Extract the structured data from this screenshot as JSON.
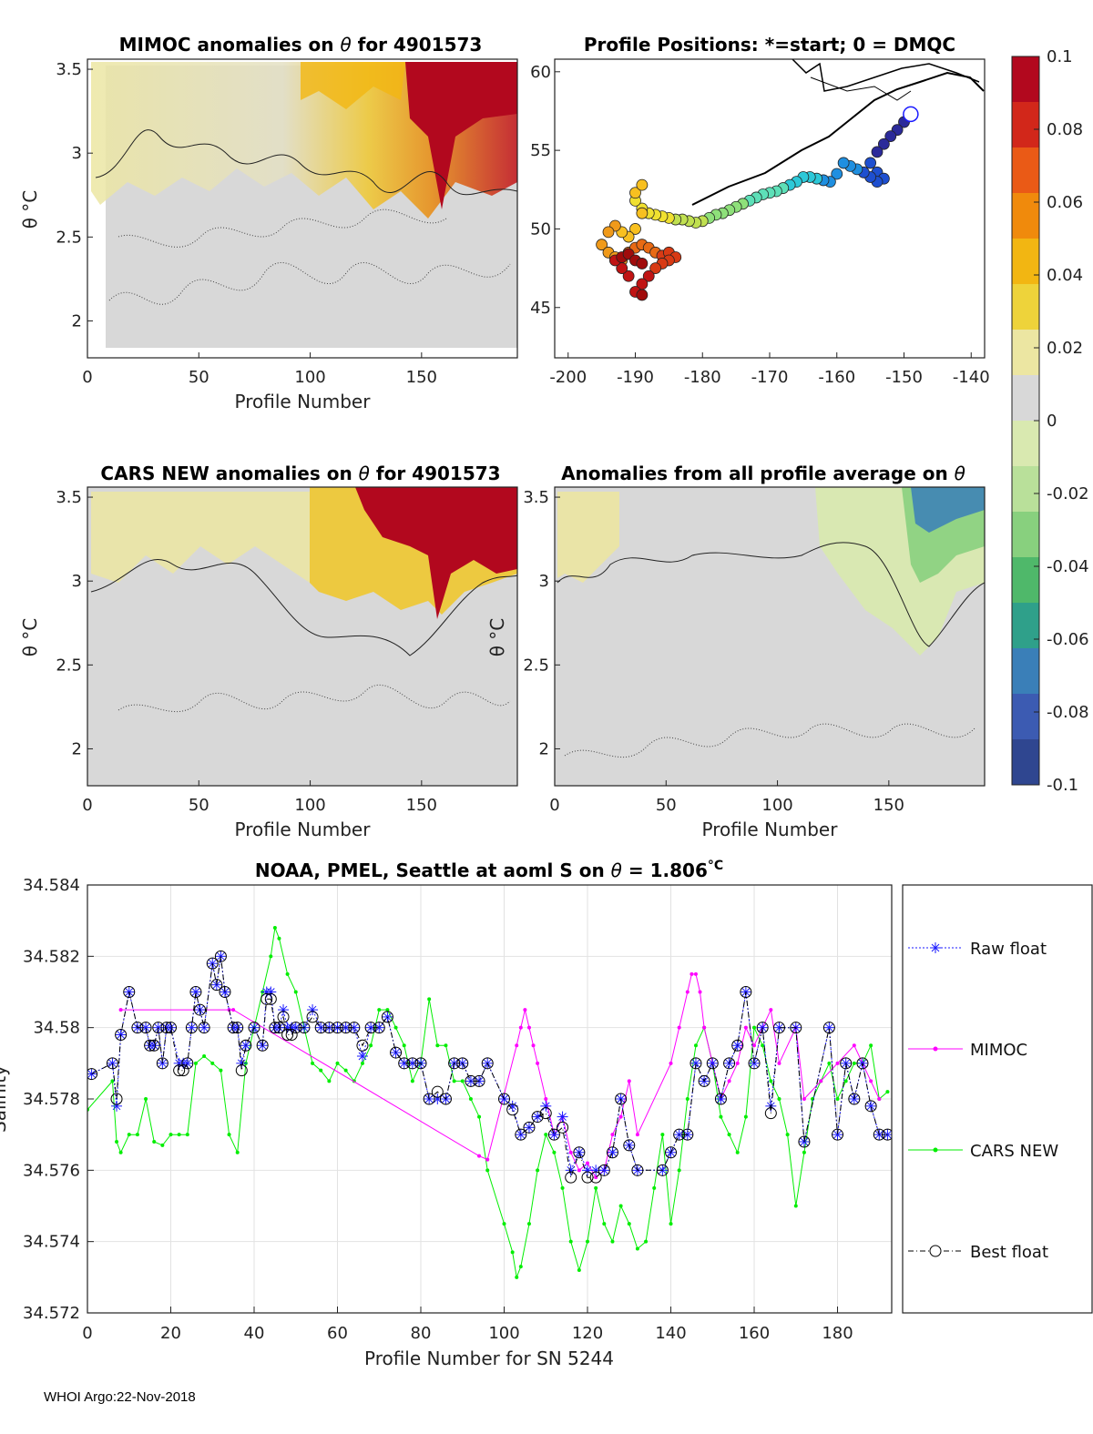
{
  "panels": {
    "mimoc": {
      "title_prefix": "MIMOC anomalies on",
      "theta_symbol": "θ",
      "title_suffix": "for 4901573",
      "xlabel": "Profile Number",
      "ylabel": "θ °C",
      "xticks": [
        "0",
        "50",
        "100",
        "150"
      ],
      "yticks": [
        "3.5",
        "3",
        "2.5",
        "2"
      ]
    },
    "positions": {
      "title": "Profile Positions: *=start; 0 = DMQC",
      "xticks": [
        "-200",
        "-190",
        "-180",
        "-170",
        "-160",
        "-150",
        "-140"
      ],
      "yticks": [
        "60",
        "55",
        "50",
        "45"
      ]
    },
    "cars": {
      "title_prefix": "CARS NEW anomalies on",
      "theta_symbol": "θ",
      "title_suffix": "for 4901573",
      "xlabel": "Profile Number",
      "ylabel": "θ °C",
      "xticks": [
        "0",
        "50",
        "100",
        "150"
      ],
      "yticks": [
        "3.5",
        "3",
        "2.5",
        "2"
      ]
    },
    "average": {
      "title_prefix": "Anomalies from all profile average on",
      "theta_symbol": "θ",
      "xlabel": "Profile Number",
      "ylabel": "θ °C",
      "xticks": [
        "0",
        "50",
        "100",
        "150"
      ],
      "yticks": [
        "3.5",
        "3",
        "2.5",
        "2"
      ]
    }
  },
  "colorbar": {
    "ticks": [
      "0.1",
      "0.08",
      "0.06",
      "0.04",
      "0.02",
      "0",
      "-0.02",
      "-0.04",
      "-0.06",
      "-0.08",
      "-0.1"
    ],
    "colors": [
      "#b2081e",
      "#d2271a",
      "#ea5a16",
      "#f08a0c",
      "#f2b612",
      "#eed33a",
      "#ece6a2",
      "#d8d8d8",
      "#d9e9b0",
      "#b9e09a",
      "#88d07e",
      "#4fb86a",
      "#2fa08a",
      "#3a7fb8",
      "#3c5bb2",
      "#2f4690"
    ]
  },
  "chart_data": {
    "type": "line",
    "title_prefix": "NOAA, PMEL, Seattle at aoml S on",
    "theta_symbol": "θ",
    "title_value": "= 1.806",
    "title_unit": "°C",
    "xlabel": "Profile Number for SN 5244",
    "ylabel": "Salinity",
    "xlim": [
      0,
      193
    ],
    "ylim": [
      34.572,
      34.584
    ],
    "xticks": [
      "0",
      "20",
      "40",
      "60",
      "80",
      "100",
      "120",
      "140",
      "160",
      "180"
    ],
    "yticks": [
      "34.584",
      "34.582",
      "34.58",
      "34.578",
      "34.576",
      "34.574",
      "34.572"
    ],
    "grid": true,
    "legend_position": "outside-right",
    "series": [
      {
        "name": "Raw float",
        "color": "#1a1aff",
        "x": [
          1,
          6,
          7,
          8,
          10,
          12,
          14,
          15,
          16,
          17,
          18,
          19,
          20,
          22,
          23,
          24,
          25,
          26,
          27,
          28,
          30,
          31,
          32,
          33,
          35,
          36,
          37,
          38,
          40,
          42,
          43,
          44,
          45,
          46,
          47,
          48,
          49,
          50,
          52,
          54,
          56,
          58,
          60,
          62,
          64,
          66,
          68,
          70,
          72,
          74,
          76,
          78,
          80,
          82,
          84,
          86,
          88,
          90,
          92,
          94,
          96,
          100,
          102,
          104,
          106,
          108,
          110,
          112,
          114,
          116,
          118,
          120,
          122,
          124,
          126,
          128,
          130,
          132,
          138,
          140,
          142,
          144,
          146,
          148,
          150,
          152,
          154,
          156,
          158,
          160,
          162,
          164,
          166,
          170,
          172,
          178,
          180,
          182,
          184,
          186,
          188,
          190,
          192
        ],
        "values": [
          34.5787,
          34.579,
          34.5778,
          34.5798,
          34.581,
          34.58,
          34.58,
          34.5795,
          34.5795,
          34.58,
          34.579,
          34.58,
          34.58,
          34.579,
          34.579,
          34.579,
          34.58,
          34.581,
          34.5805,
          34.58,
          34.5818,
          34.5812,
          34.582,
          34.581,
          34.58,
          34.58,
          34.579,
          34.5795,
          34.58,
          34.5795,
          34.581,
          34.581,
          34.58,
          34.58,
          34.5805,
          34.58,
          34.58,
          34.58,
          34.58,
          34.5805,
          34.58,
          34.58,
          34.58,
          34.58,
          34.58,
          34.5792,
          34.58,
          34.58,
          34.5803,
          34.5793,
          34.579,
          34.579,
          34.579,
          34.578,
          34.578,
          34.578,
          34.579,
          34.579,
          34.5785,
          34.5785,
          34.579,
          34.578,
          34.5778,
          34.577,
          34.5772,
          34.5775,
          34.5778,
          34.577,
          34.5775,
          34.576,
          34.5765,
          34.576,
          34.576,
          34.576,
          34.5765,
          34.578,
          34.5767,
          34.576,
          34.576,
          34.5765,
          34.577,
          34.577,
          34.579,
          34.5785,
          34.579,
          34.578,
          34.579,
          34.5795,
          34.581,
          34.579,
          34.58,
          34.5778,
          34.58,
          34.58,
          34.5768,
          34.58,
          34.577,
          34.579,
          34.578,
          34.579,
          34.5778,
          34.577,
          34.577
        ]
      },
      {
        "name": "MIMOC",
        "color": "#ff00ff",
        "x": [
          8,
          34,
          35,
          94,
          96,
          103,
          104,
          105,
          106,
          107,
          108,
          110,
          112,
          114,
          116,
          118,
          120,
          122,
          124,
          126,
          128,
          130,
          132,
          140,
          142,
          144,
          145,
          146,
          147,
          148,
          150,
          152,
          154,
          156,
          158,
          160,
          162,
          164,
          166,
          170,
          172,
          176,
          180,
          184,
          186,
          188,
          190
        ],
        "values": [
          34.5805,
          34.5805,
          34.5805,
          34.5764,
          34.5763,
          34.5795,
          34.58,
          34.5805,
          34.58,
          34.5795,
          34.579,
          34.578,
          34.577,
          34.5775,
          34.5765,
          34.576,
          34.5762,
          34.5758,
          34.576,
          34.577,
          34.5775,
          34.5785,
          34.577,
          34.579,
          34.58,
          34.581,
          34.5815,
          34.5815,
          34.581,
          34.58,
          34.579,
          34.578,
          34.5785,
          34.579,
          34.58,
          34.5795,
          34.58,
          34.5805,
          34.579,
          34.58,
          34.578,
          34.5785,
          34.579,
          34.5795,
          34.579,
          34.5785,
          34.578
        ]
      },
      {
        "name": "CARS NEW",
        "color": "#00ee00",
        "x": [
          0,
          6,
          7,
          8,
          10,
          12,
          14,
          16,
          18,
          20,
          22,
          24,
          26,
          28,
          30,
          32,
          34,
          36,
          38,
          40,
          42,
          44,
          45,
          46,
          48,
          50,
          52,
          54,
          56,
          58,
          60,
          62,
          64,
          66,
          68,
          70,
          72,
          74,
          76,
          78,
          80,
          82,
          84,
          86,
          88,
          90,
          92,
          94,
          96,
          100,
          102,
          103,
          104,
          106,
          108,
          110,
          112,
          114,
          116,
          118,
          120,
          122,
          124,
          126,
          128,
          130,
          132,
          134,
          136,
          138,
          140,
          142,
          144,
          146,
          148,
          150,
          152,
          154,
          156,
          158,
          160,
          162,
          164,
          166,
          168,
          170,
          172,
          174,
          176,
          178,
          180,
          182,
          184,
          186,
          188,
          190,
          192
        ],
        "values": [
          34.5777,
          34.5785,
          34.5768,
          34.5765,
          34.577,
          34.577,
          34.578,
          34.5768,
          34.5767,
          34.577,
          34.577,
          34.577,
          34.579,
          34.5792,
          34.579,
          34.5788,
          34.577,
          34.5765,
          34.579,
          34.58,
          34.581,
          34.582,
          34.5828,
          34.5825,
          34.5815,
          34.581,
          34.58,
          34.579,
          34.5788,
          34.5785,
          34.579,
          34.5788,
          34.5785,
          34.579,
          34.5795,
          34.5805,
          34.5805,
          34.58,
          34.5795,
          34.5785,
          34.579,
          34.5808,
          34.5795,
          34.5795,
          34.5785,
          34.5785,
          34.578,
          34.5775,
          34.576,
          34.5745,
          34.5737,
          34.573,
          34.5733,
          34.5745,
          34.576,
          34.577,
          34.5765,
          34.5755,
          34.574,
          34.5732,
          34.574,
          34.5755,
          34.5745,
          34.574,
          34.575,
          34.5745,
          34.5738,
          34.574,
          34.5755,
          34.577,
          34.5745,
          34.576,
          34.578,
          34.5795,
          34.58,
          34.579,
          34.5775,
          34.577,
          34.5765,
          34.5775,
          34.58,
          34.5795,
          34.5785,
          34.578,
          34.577,
          34.575,
          34.5765,
          34.578,
          34.5785,
          34.579,
          34.578,
          34.5785,
          34.579,
          34.579,
          34.5795,
          34.578,
          34.5782
        ]
      },
      {
        "name": "Best float",
        "color": "#000000",
        "x": [
          1,
          6,
          7,
          8,
          10,
          12,
          14,
          15,
          16,
          17,
          18,
          19,
          20,
          22,
          23,
          24,
          25,
          26,
          27,
          28,
          30,
          31,
          32,
          33,
          35,
          36,
          37,
          38,
          40,
          42,
          43,
          44,
          45,
          46,
          47,
          48,
          49,
          50,
          52,
          54,
          56,
          58,
          60,
          62,
          64,
          66,
          68,
          70,
          72,
          74,
          76,
          78,
          80,
          82,
          84,
          86,
          88,
          90,
          92,
          94,
          96,
          100,
          102,
          104,
          106,
          108,
          110,
          112,
          114,
          116,
          118,
          120,
          122,
          124,
          126,
          128,
          130,
          132,
          138,
          140,
          142,
          144,
          146,
          148,
          150,
          152,
          154,
          156,
          158,
          160,
          162,
          164,
          166,
          170,
          172,
          178,
          180,
          182,
          184,
          186,
          188,
          190,
          192
        ],
        "values": [
          34.5787,
          34.579,
          34.578,
          34.5798,
          34.581,
          34.58,
          34.58,
          34.5795,
          34.5795,
          34.58,
          34.579,
          34.58,
          34.58,
          34.5788,
          34.5788,
          34.579,
          34.58,
          34.581,
          34.5805,
          34.58,
          34.5818,
          34.5812,
          34.582,
          34.581,
          34.58,
          34.58,
          34.5788,
          34.5795,
          34.58,
          34.5795,
          34.5808,
          34.5808,
          34.58,
          34.58,
          34.5803,
          34.5798,
          34.5798,
          34.58,
          34.58,
          34.5803,
          34.58,
          34.58,
          34.58,
          34.58,
          34.58,
          34.5795,
          34.58,
          34.58,
          34.5803,
          34.5793,
          34.579,
          34.579,
          34.579,
          34.578,
          34.5782,
          34.578,
          34.579,
          34.579,
          34.5785,
          34.5785,
          34.579,
          34.578,
          34.5777,
          34.577,
          34.5772,
          34.5775,
          34.5776,
          34.577,
          34.5772,
          34.5758,
          34.5765,
          34.5758,
          34.5758,
          34.576,
          34.5765,
          34.578,
          34.5767,
          34.576,
          34.576,
          34.5765,
          34.577,
          34.577,
          34.579,
          34.5785,
          34.579,
          34.578,
          34.579,
          34.5795,
          34.581,
          34.579,
          34.58,
          34.5776,
          34.58,
          34.58,
          34.5768,
          34.58,
          34.577,
          34.579,
          34.578,
          34.579,
          34.5778,
          34.577,
          34.577
        ]
      }
    ]
  },
  "positions_track": {
    "lon": [
      -149,
      -150,
      -151,
      -152,
      -153,
      -154,
      -155,
      -154,
      -153,
      -154,
      -155,
      -156,
      -157,
      -158,
      -159,
      -160,
      -161,
      -162,
      -163,
      -164,
      -165,
      -166,
      -167,
      -168,
      -169,
      -170,
      -171,
      -172,
      -173,
      -174,
      -175,
      -176,
      -177,
      -178,
      -179,
      -180,
      -181,
      -182,
      -183,
      -184,
      -185,
      -186,
      -187,
      -188,
      -189,
      -190,
      -190,
      -189,
      -189,
      -190,
      -191,
      -192,
      -193,
      -194,
      -195,
      -194,
      -193,
      -192,
      -191,
      -190,
      -189,
      -188,
      -187,
      -186,
      -185,
      -184,
      -185,
      -186,
      -187,
      -188,
      -189,
      -190,
      -191,
      -192,
      -193,
      -192,
      -191,
      -190,
      -189,
      -189
    ],
    "lat": [
      57.3,
      56.8,
      56.3,
      55.9,
      55.4,
      54.9,
      54.2,
      53.6,
      53.2,
      53.0,
      53.3,
      53.6,
      53.8,
      54.0,
      54.2,
      53.5,
      53.0,
      53.1,
      53.2,
      53.3,
      53.3,
      53.0,
      52.8,
      52.6,
      52.4,
      52.3,
      52.2,
      52.0,
      51.8,
      51.6,
      51.4,
      51.2,
      51.0,
      50.9,
      50.7,
      50.5,
      50.4,
      50.5,
      50.6,
      50.6,
      50.7,
      50.8,
      50.9,
      51.0,
      51.3,
      51.8,
      52.3,
      52.8,
      51.0,
      50.0,
      49.5,
      49.8,
      50.2,
      49.8,
      49.0,
      48.5,
      48.2,
      48.0,
      48.5,
      48.8,
      49.0,
      48.8,
      48.5,
      48.3,
      48.5,
      48.2,
      48.0,
      47.8,
      47.5,
      47.0,
      46.5,
      46.0,
      47.0,
      47.5,
      48.0,
      48.2,
      48.4,
      48.0,
      47.8,
      45.8
    ]
  },
  "footer": "WHOI Argo:22-Nov-2018"
}
